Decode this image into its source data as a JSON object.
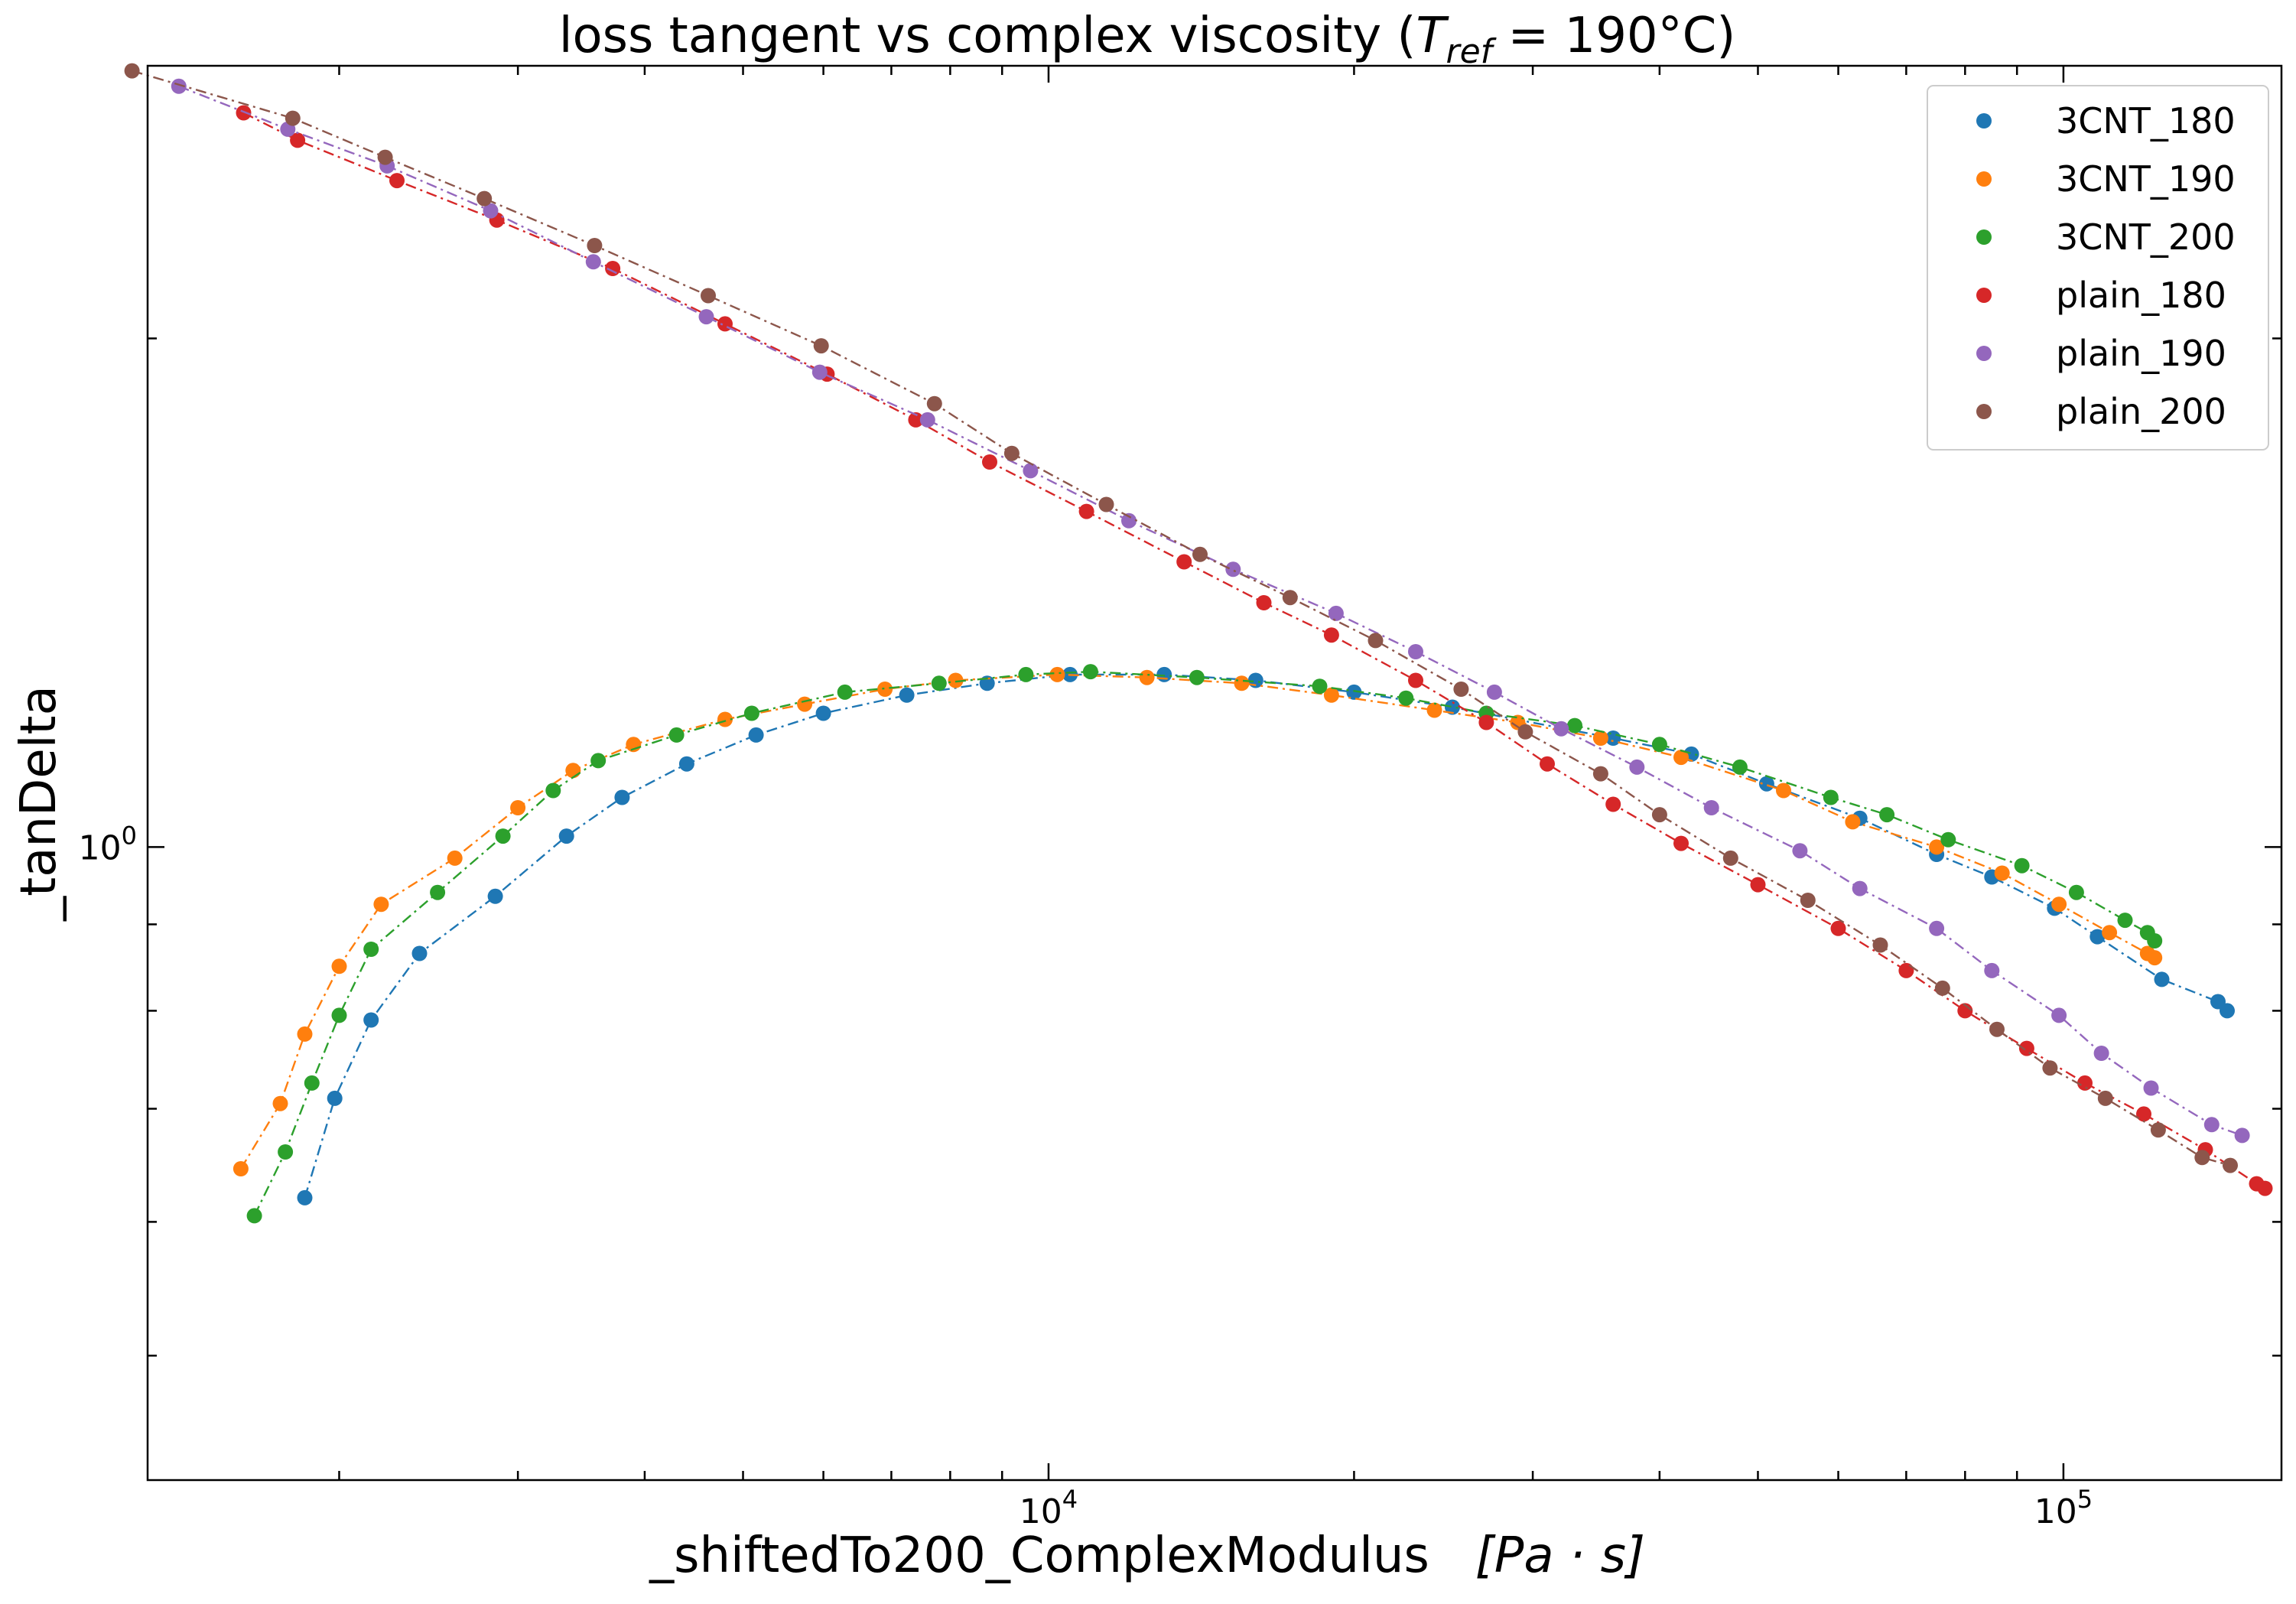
{
  "chart_data": {
    "type": "scatter",
    "title_main": "loss tangent vs complex viscosity (",
    "title_math_T": "T",
    "title_math_sub": "ref",
    "title_math_rest": " = 190°C)",
    "xlabel_main": "_shiftedTo200_ComplexModulus",
    "xlabel_unit": "[Pa · s]",
    "ylabel": "_tanDelta",
    "xscale": "log",
    "yscale": "log",
    "xlim": [
      1295,
      164000
    ],
    "ylim": [
      0.422,
      2.9
    ],
    "xticks": [
      {
        "value": 10000,
        "base": "10",
        "exp": "4"
      },
      {
        "value": 100000,
        "base": "10",
        "exp": "5"
      }
    ],
    "yticks": [
      {
        "value": 1.0,
        "base": "10",
        "exp": "0"
      }
    ],
    "grid": false,
    "legend_position": "top-right",
    "series": [
      {
        "name": "3CNT_180",
        "color": "#1f77b4",
        "points": [
          [
            1850,
            0.62
          ],
          [
            1980,
            0.71
          ],
          [
            2150,
            0.79
          ],
          [
            2400,
            0.865
          ],
          [
            2850,
            0.935
          ],
          [
            3350,
            1.015
          ],
          [
            3800,
            1.07
          ],
          [
            4400,
            1.12
          ],
          [
            5150,
            1.165
          ],
          [
            6000,
            1.2
          ],
          [
            7250,
            1.23
          ],
          [
            8700,
            1.25
          ],
          [
            10500,
            1.265
          ],
          [
            13000,
            1.265
          ],
          [
            16000,
            1.255
          ],
          [
            20000,
            1.235
          ],
          [
            25000,
            1.21
          ],
          [
            36000,
            1.16
          ],
          [
            43000,
            1.135
          ],
          [
            51000,
            1.09
          ],
          [
            63000,
            1.04
          ],
          [
            75000,
            0.99
          ],
          [
            85000,
            0.96
          ],
          [
            98000,
            0.92
          ],
          [
            108000,
            0.885
          ],
          [
            125000,
            0.835
          ],
          [
            142000,
            0.81
          ],
          [
            145000,
            0.8
          ]
        ]
      },
      {
        "name": "3CNT_190",
        "color": "#ff7f0e",
        "points": [
          [
            1600,
            0.645
          ],
          [
            1750,
            0.705
          ],
          [
            1850,
            0.775
          ],
          [
            2000,
            0.85
          ],
          [
            2200,
            0.925
          ],
          [
            2600,
            0.985
          ],
          [
            3000,
            1.055
          ],
          [
            3400,
            1.11
          ],
          [
            3900,
            1.15
          ],
          [
            4800,
            1.19
          ],
          [
            5750,
            1.215
          ],
          [
            6900,
            1.24
          ],
          [
            8100,
            1.255
          ],
          [
            10200,
            1.265
          ],
          [
            12500,
            1.26
          ],
          [
            15500,
            1.25
          ],
          [
            19000,
            1.23
          ],
          [
            24000,
            1.205
          ],
          [
            29000,
            1.185
          ],
          [
            35000,
            1.16
          ],
          [
            42000,
            1.13
          ],
          [
            53000,
            1.08
          ],
          [
            62000,
            1.035
          ],
          [
            75000,
            1.0
          ],
          [
            87000,
            0.965
          ],
          [
            99000,
            0.925
          ],
          [
            111000,
            0.89
          ],
          [
            121000,
            0.865
          ],
          [
            123000,
            0.86
          ]
        ]
      },
      {
        "name": "3CNT_200",
        "color": "#2ca02c",
        "points": [
          [
            1650,
            0.605
          ],
          [
            1770,
            0.66
          ],
          [
            1880,
            0.725
          ],
          [
            2000,
            0.795
          ],
          [
            2150,
            0.87
          ],
          [
            2500,
            0.94
          ],
          [
            2900,
            1.015
          ],
          [
            3250,
            1.08
          ],
          [
            3600,
            1.125
          ],
          [
            4300,
            1.165
          ],
          [
            5100,
            1.2
          ],
          [
            6300,
            1.235
          ],
          [
            7800,
            1.25
          ],
          [
            9500,
            1.265
          ],
          [
            11000,
            1.27
          ],
          [
            14000,
            1.26
          ],
          [
            18500,
            1.245
          ],
          [
            22500,
            1.225
          ],
          [
            27000,
            1.2
          ],
          [
            33000,
            1.18
          ],
          [
            40000,
            1.15
          ],
          [
            48000,
            1.115
          ],
          [
            59000,
            1.07
          ],
          [
            67000,
            1.045
          ],
          [
            77000,
            1.01
          ],
          [
            91000,
            0.975
          ],
          [
            103000,
            0.94
          ],
          [
            115000,
            0.905
          ],
          [
            121000,
            0.89
          ],
          [
            123000,
            0.88
          ]
        ]
      },
      {
        "name": "plain_180",
        "color": "#d62728",
        "points": [
          [
            1610,
            2.72
          ],
          [
            1820,
            2.62
          ],
          [
            2280,
            2.48
          ],
          [
            2860,
            2.35
          ],
          [
            3720,
            2.2
          ],
          [
            4800,
            2.04
          ],
          [
            6050,
            1.905
          ],
          [
            7400,
            1.79
          ],
          [
            8750,
            1.69
          ],
          [
            10900,
            1.58
          ],
          [
            13600,
            1.475
          ],
          [
            16300,
            1.395
          ],
          [
            19000,
            1.335
          ],
          [
            23000,
            1.255
          ],
          [
            27000,
            1.185
          ],
          [
            31000,
            1.12
          ],
          [
            36000,
            1.06
          ],
          [
            42000,
            1.005
          ],
          [
            50000,
            0.95
          ],
          [
            60000,
            0.895
          ],
          [
            70000,
            0.845
          ],
          [
            80000,
            0.8
          ],
          [
            92000,
            0.76
          ],
          [
            105000,
            0.725
          ],
          [
            120000,
            0.695
          ],
          [
            138000,
            0.662
          ],
          [
            155000,
            0.632
          ],
          [
            158000,
            0.628
          ]
        ]
      },
      {
        "name": "plain_190",
        "color": "#9467bd",
        "points": [
          [
            1390,
            2.82
          ],
          [
            1780,
            2.66
          ],
          [
            2230,
            2.53
          ],
          [
            2820,
            2.38
          ],
          [
            3560,
            2.22
          ],
          [
            4600,
            2.06
          ],
          [
            5950,
            1.91
          ],
          [
            7600,
            1.79
          ],
          [
            9600,
            1.67
          ],
          [
            12000,
            1.56
          ],
          [
            15200,
            1.46
          ],
          [
            19200,
            1.375
          ],
          [
            23000,
            1.305
          ],
          [
            27500,
            1.235
          ],
          [
            32000,
            1.175
          ],
          [
            38000,
            1.115
          ],
          [
            45000,
            1.055
          ],
          [
            55000,
            0.995
          ],
          [
            63000,
            0.945
          ],
          [
            75000,
            0.895
          ],
          [
            85000,
            0.845
          ],
          [
            99000,
            0.795
          ],
          [
            109000,
            0.755
          ],
          [
            122000,
            0.72
          ],
          [
            140000,
            0.685
          ],
          [
            150000,
            0.675
          ]
        ]
      },
      {
        "name": "plain_200",
        "color": "#8c564b",
        "points": [
          [
            1250,
            2.88
          ],
          [
            1800,
            2.7
          ],
          [
            2220,
            2.56
          ],
          [
            2780,
            2.42
          ],
          [
            3570,
            2.27
          ],
          [
            4620,
            2.12
          ],
          [
            5970,
            1.98
          ],
          [
            7720,
            1.83
          ],
          [
            9200,
            1.71
          ],
          [
            11400,
            1.595
          ],
          [
            14100,
            1.49
          ],
          [
            17300,
            1.405
          ],
          [
            21000,
            1.325
          ],
          [
            25500,
            1.24
          ],
          [
            29500,
            1.17
          ],
          [
            35000,
            1.105
          ],
          [
            40000,
            1.045
          ],
          [
            47000,
            0.985
          ],
          [
            56000,
            0.93
          ],
          [
            66000,
            0.875
          ],
          [
            76000,
            0.825
          ],
          [
            86000,
            0.78
          ],
          [
            97000,
            0.74
          ],
          [
            110000,
            0.71
          ],
          [
            124000,
            0.68
          ],
          [
            137000,
            0.655
          ],
          [
            146000,
            0.648
          ]
        ]
      }
    ]
  }
}
